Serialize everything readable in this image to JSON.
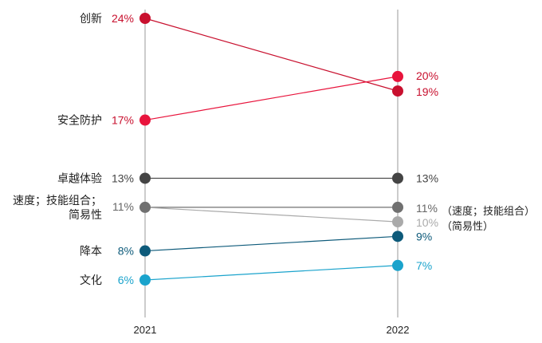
{
  "chart_data": {
    "type": "line",
    "subtype": "slope",
    "x": [
      "2021",
      "2022"
    ],
    "ylim": [
      0,
      25
    ],
    "grid": false,
    "series": [
      {
        "name": "创新",
        "label_lines": [
          "创新"
        ],
        "values": [
          24,
          19
        ],
        "value_labels": [
          "24%",
          "19%"
        ],
        "color": "#c8102e",
        "value_color": "#c8102e"
      },
      {
        "name": "安全防护",
        "label_lines": [
          "安全防护"
        ],
        "values": [
          17,
          20
        ],
        "value_labels": [
          "17%",
          "20%"
        ],
        "color": "#e8143c",
        "value_color": "#c8102e"
      },
      {
        "name": "卓越体验",
        "label_lines": [
          "卓越体验"
        ],
        "values": [
          13,
          13
        ],
        "value_labels": [
          "13%",
          "13%"
        ],
        "color": "#444444",
        "value_color": "#444444"
      },
      {
        "name": "速度；技能组合；简易性",
        "label_lines": [
          "速度；技能组合；",
          "简易性"
        ],
        "values": [
          11,
          11
        ],
        "value_labels": [
          "11%",
          "11%"
        ],
        "color": "#707070",
        "value_color": "#666666"
      },
      {
        "name": "简易性",
        "values": [
          11,
          10
        ],
        "value_labels": [
          "",
          "10%"
        ],
        "color": "#aaaaaa",
        "value_color": "#aaaaaa",
        "hide_start_dot": true
      },
      {
        "name": "降本",
        "label_lines": [
          "降本"
        ],
        "values": [
          8,
          9
        ],
        "value_labels": [
          "8%",
          "9%"
        ],
        "color": "#0d5a7a",
        "value_color": "#0d5a7a"
      },
      {
        "name": "文化",
        "label_lines": [
          "文化"
        ],
        "values": [
          6,
          7
        ],
        "value_labels": [
          "6%",
          "7%"
        ],
        "color": "#1aa3cc",
        "value_color": "#1aa3cc"
      }
    ],
    "right_notes": [
      "（速度；技能组合）",
      "（简易性）"
    ]
  }
}
